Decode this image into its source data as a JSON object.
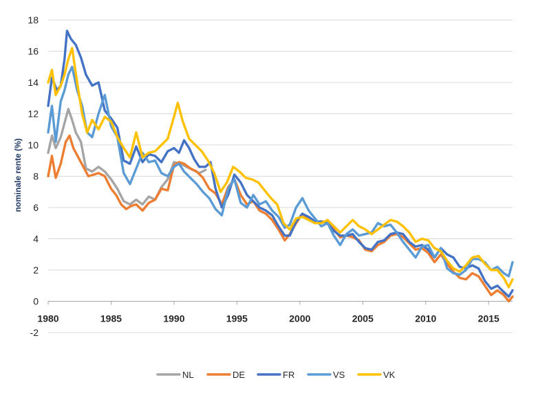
{
  "chart_data": {
    "type": "line",
    "title": "",
    "xlabel": "",
    "ylabel": "nominale rente (%)",
    "xlim": [
      1980,
      2016.9
    ],
    "ylim": [
      -2,
      18
    ],
    "x_ticks": [
      1980,
      1985,
      1990,
      1995,
      2000,
      2005,
      2010,
      2015
    ],
    "y_ticks": [
      -2,
      0,
      2,
      4,
      6,
      8,
      10,
      12,
      14,
      16,
      18
    ],
    "grid": true,
    "legend_position": "bottom",
    "series": [
      {
        "name": "NL",
        "color": "#a5a5a5",
        "x": [
          1980,
          1980.3,
          1980.6,
          1981,
          1981.3,
          1981.6,
          1981.9,
          1982.2,
          1982.6,
          1983,
          1983.5,
          1984,
          1984.5,
          1985,
          1985.5,
          1986,
          1986.5,
          1987,
          1987.5,
          1988,
          1988.5,
          1989,
          1989.5,
          1990,
          1990.5,
          1991,
          1991.5,
          1992,
          1992.5
        ],
        "values": [
          9.5,
          10.6,
          9.8,
          10.5,
          11.4,
          12.3,
          11.6,
          10.8,
          10.2,
          8.5,
          8.3,
          8.6,
          8.3,
          7.8,
          7.2,
          6.4,
          6.2,
          6.5,
          6.2,
          6.7,
          6.5,
          7.3,
          7.8,
          8.9,
          8.8,
          8.6,
          8.4,
          8.2,
          8.4
        ]
      },
      {
        "name": "DE",
        "color": "#ed7d31",
        "x": [
          1980,
          1980.3,
          1980.6,
          1981,
          1981.4,
          1981.7,
          1982,
          1982.4,
          1982.8,
          1983.2,
          1983.6,
          1984,
          1984.5,
          1985,
          1985.4,
          1985.8,
          1986.2,
          1986.6,
          1987,
          1987.5,
          1988,
          1988.5,
          1989,
          1989.5,
          1990,
          1990.4,
          1990.8,
          1991.3,
          1991.8,
          1992.3,
          1992.8,
          1993.3,
          1993.8,
          1994.3,
          1994.8,
          1995.3,
          1995.8,
          1996.3,
          1996.8,
          1997.3,
          1997.8,
          1998.3,
          1998.8,
          1999.2,
          1999.7,
          2000.2,
          2000.7,
          2001.2,
          2001.7,
          2002.2,
          2002.7,
          2003.2,
          2003.7,
          2004.2,
          2004.7,
          2005.2,
          2005.7,
          2006.2,
          2006.7,
          2007.2,
          2007.7,
          2008.2,
          2008.7,
          2009.2,
          2009.7,
          2010.2,
          2010.7,
          2011.2,
          2011.7,
          2012.2,
          2012.7,
          2013.2,
          2013.7,
          2014.2,
          2014.7,
          2015.2,
          2015.7,
          2016.2,
          2016.6,
          2016.9
        ],
        "values": [
          8.0,
          9.3,
          7.9,
          8.8,
          10.2,
          10.6,
          9.8,
          9.2,
          8.6,
          8.0,
          8.1,
          8.2,
          8.0,
          7.2,
          6.8,
          6.2,
          5.9,
          6.1,
          6.2,
          5.8,
          6.3,
          6.5,
          7.2,
          7.1,
          8.7,
          8.9,
          8.8,
          8.5,
          8.3,
          7.9,
          7.2,
          6.9,
          6.2,
          7.3,
          7.8,
          6.8,
          6.2,
          6.4,
          5.8,
          5.6,
          5.2,
          4.6,
          3.9,
          4.3,
          5.0,
          5.6,
          5.3,
          5.0,
          5.1,
          5.1,
          4.6,
          4.1,
          4.2,
          4.1,
          3.9,
          3.3,
          3.2,
          3.6,
          3.8,
          4.2,
          4.3,
          4.1,
          3.7,
          3.3,
          3.4,
          3.1,
          2.5,
          3.0,
          2.4,
          1.9,
          1.5,
          1.4,
          1.8,
          1.6,
          1.0,
          0.4,
          0.7,
          0.4,
          0.0,
          0.3
        ]
      },
      {
        "name": "FR",
        "color": "#4472c4",
        "x": [
          1980,
          1980.3,
          1980.7,
          1981,
          1981.3,
          1981.5,
          1981.8,
          1982.2,
          1982.6,
          1983,
          1983.5,
          1984,
          1984.5,
          1985,
          1985.5,
          1986,
          1986.5,
          1987,
          1987.5,
          1988,
          1988.5,
          1989,
          1989.5,
          1990,
          1990.4,
          1990.8,
          1991.2,
          1991.6,
          1992,
          1992.5,
          1992.9,
          1993.3,
          1993.8,
          1994.3,
          1994.8,
          1995.3,
          1995.8,
          1996.3,
          1996.8,
          1997.3,
          1997.8,
          1998.3,
          1998.8,
          1999.2,
          1999.7,
          2000.2,
          2000.7,
          2001.2,
          2001.7,
          2002.2,
          2002.7,
          2003.2,
          2003.7,
          2004.2,
          2004.7,
          2005.2,
          2005.7,
          2006.2,
          2006.7,
          2007.2,
          2007.7,
          2008.2,
          2008.7,
          2009.2,
          2009.7,
          2010.2,
          2010.7,
          2011.2,
          2011.7,
          2012.2,
          2012.7,
          2013.2,
          2013.7,
          2014.2,
          2014.7,
          2015.2,
          2015.7,
          2016.2,
          2016.6,
          2016.9
        ],
        "values": [
          12.5,
          14.3,
          13.5,
          13.8,
          15.5,
          17.3,
          16.8,
          16.4,
          15.6,
          14.5,
          13.8,
          14.0,
          12.2,
          11.7,
          11.1,
          9.0,
          8.8,
          9.9,
          8.9,
          9.4,
          9.3,
          8.9,
          9.6,
          9.8,
          9.5,
          10.3,
          9.8,
          9.1,
          8.6,
          8.6,
          8.9,
          7.2,
          6.0,
          6.8,
          8.1,
          7.6,
          6.8,
          6.4,
          6.0,
          5.8,
          5.5,
          4.8,
          4.2,
          4.2,
          5.1,
          5.6,
          5.4,
          5.1,
          5.1,
          5.0,
          4.5,
          4.2,
          4.2,
          4.3,
          3.8,
          3.4,
          3.3,
          3.8,
          3.9,
          4.3,
          4.4,
          4.3,
          3.8,
          3.5,
          3.6,
          3.3,
          2.8,
          3.4,
          3.0,
          2.8,
          2.2,
          2.1,
          2.3,
          2.1,
          1.3,
          0.8,
          1.0,
          0.6,
          0.3,
          0.7
        ]
      },
      {
        "name": "VS",
        "color": "#5b9bd5",
        "x": [
          1980,
          1980.3,
          1980.6,
          1981,
          1981.3,
          1981.6,
          1981.9,
          1982.3,
          1982.7,
          1983.1,
          1983.5,
          1984,
          1984.5,
          1985,
          1985.5,
          1986,
          1986.5,
          1987,
          1987.5,
          1988,
          1988.5,
          1989,
          1989.5,
          1990,
          1990.4,
          1990.8,
          1991.3,
          1991.8,
          1992.3,
          1992.8,
          1993.3,
          1993.8,
          1994.3,
          1994.8,
          1995.3,
          1995.8,
          1996.3,
          1996.8,
          1997.3,
          1997.8,
          1998.3,
          1998.8,
          1999.2,
          1999.7,
          2000.2,
          2000.7,
          2001.2,
          2001.7,
          2002.2,
          2002.7,
          2003.2,
          2003.7,
          2004.2,
          2004.7,
          2005.2,
          2005.7,
          2006.2,
          2006.7,
          2007.2,
          2007.7,
          2008.2,
          2008.7,
          2009.2,
          2009.7,
          2010.2,
          2010.7,
          2011.2,
          2011.7,
          2012.2,
          2012.7,
          2013.2,
          2013.7,
          2014.2,
          2014.7,
          2015.2,
          2015.7,
          2016.2,
          2016.6,
          2016.9
        ],
        "values": [
          10.8,
          12.5,
          10.2,
          12.8,
          13.5,
          14.5,
          15.0,
          13.5,
          12.5,
          10.8,
          10.5,
          12.0,
          13.2,
          11.2,
          10.5,
          8.2,
          7.5,
          8.5,
          9.5,
          8.9,
          9.0,
          8.2,
          8.0,
          8.6,
          8.8,
          8.3,
          7.9,
          7.5,
          7.0,
          6.6,
          5.9,
          5.5,
          7.2,
          7.8,
          6.3,
          6.0,
          6.8,
          6.2,
          6.4,
          5.8,
          5.4,
          4.7,
          4.9,
          6.0,
          6.6,
          5.8,
          5.3,
          4.8,
          5.0,
          4.2,
          3.6,
          4.3,
          4.6,
          4.2,
          4.3,
          4.4,
          5.0,
          4.8,
          4.9,
          4.4,
          3.8,
          3.3,
          2.8,
          3.5,
          3.6,
          2.8,
          3.4,
          2.1,
          1.8,
          1.7,
          2.0,
          2.7,
          2.7,
          2.5,
          2.0,
          2.2,
          1.8,
          1.6,
          2.5
        ]
      },
      {
        "name": "VK",
        "color": "#ffc000",
        "x": [
          1980,
          1980.3,
          1980.6,
          1981,
          1981.3,
          1981.6,
          1981.9,
          1982.3,
          1982.7,
          1983.1,
          1983.5,
          1984,
          1984.5,
          1985,
          1985.5,
          1986,
          1986.5,
          1987,
          1987.5,
          1988,
          1988.5,
          1989,
          1989.5,
          1990,
          1990.3,
          1990.7,
          1991.2,
          1991.7,
          1992.2,
          1992.7,
          1993.2,
          1993.7,
          1994.2,
          1994.7,
          1995.2,
          1995.7,
          1996.2,
          1996.7,
          1997.2,
          1997.7,
          1998.2,
          1998.7,
          1999.2,
          1999.7,
          2000.2,
          2000.7,
          2001.2,
          2001.7,
          2002.2,
          2002.7,
          2003.2,
          2003.7,
          2004.2,
          2004.7,
          2005.2,
          2005.7,
          2006.2,
          2006.7,
          2007.2,
          2007.7,
          2008.2,
          2008.7,
          2009.2,
          2009.7,
          2010.2,
          2010.7,
          2011.2,
          2011.7,
          2012.2,
          2012.7,
          2013.2,
          2013.7,
          2014.2,
          2014.7,
          2015.2,
          2015.7,
          2016.2,
          2016.6,
          2016.9
        ],
        "values": [
          14.0,
          14.8,
          13.2,
          13.8,
          14.5,
          15.5,
          16.2,
          14.0,
          12.0,
          10.8,
          11.6,
          11.0,
          11.8,
          11.5,
          10.5,
          9.8,
          9.2,
          10.8,
          9.2,
          9.5,
          9.6,
          10.0,
          10.4,
          11.8,
          12.7,
          11.5,
          10.4,
          10.0,
          9.6,
          9.0,
          8.2,
          7.0,
          7.6,
          8.6,
          8.3,
          7.9,
          7.8,
          7.6,
          7.1,
          6.6,
          6.2,
          5.0,
          4.6,
          5.3,
          5.4,
          5.2,
          5.0,
          5.0,
          5.2,
          4.8,
          4.4,
          4.8,
          5.2,
          4.8,
          4.6,
          4.3,
          4.6,
          4.9,
          5.2,
          5.1,
          4.8,
          4.4,
          3.8,
          4.0,
          3.9,
          3.4,
          3.2,
          2.6,
          2.1,
          1.9,
          2.3,
          2.8,
          2.9,
          2.4,
          2.0,
          2.0,
          1.5,
          0.9,
          1.4
        ]
      }
    ]
  }
}
